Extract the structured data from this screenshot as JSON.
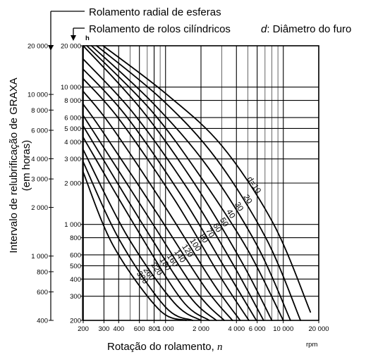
{
  "chart_data": {
    "type": "line",
    "legend": {
      "ball": "Rolamento radial de esferas",
      "roller": "Rolamento de rolos cilíndricos",
      "d_symbol": "d",
      "d_text": ": Diâmetro do furo"
    },
    "ylabel_line1": "Intervalo de relubrificação de GRAXA",
    "ylabel_line2": "(em horas)",
    "xlabel": "Rotação do rolamento, ",
    "xlabel_symbol": "n",
    "x_unit": "rpm",
    "y_unit": "h",
    "xscale": "log",
    "xlim": [
      200,
      20000
    ],
    "x_ticks": [
      {
        "v": 200,
        "t": "200"
      },
      {
        "v": 300,
        "t": "300"
      },
      {
        "v": 400,
        "t": "400"
      },
      {
        "v": 600,
        "t": "600"
      },
      {
        "v": 800,
        "t": "800"
      },
      {
        "v": 1000,
        "t": "1 000"
      },
      {
        "v": 2000,
        "t": "2 000"
      },
      {
        "v": 4000,
        "t": "4 000"
      },
      {
        "v": 6000,
        "t": "6 000"
      },
      {
        "v": 10000,
        "t": "10 000"
      },
      {
        "v": 20000,
        "t": "20 000"
      }
    ],
    "y_roller_lim": [
      200,
      20000
    ],
    "y_roller_ticks": [
      {
        "v": 200,
        "t": "200"
      },
      {
        "v": 300,
        "t": "300"
      },
      {
        "v": 400,
        "t": "400"
      },
      {
        "v": 500,
        "t": "500"
      },
      {
        "v": 600,
        "t": "600"
      },
      {
        "v": 800,
        "t": "800"
      },
      {
        "v": 1000,
        "t": "1 000"
      },
      {
        "v": 2000,
        "t": "2 000"
      },
      {
        "v": 3000,
        "t": "3 000"
      },
      {
        "v": 4000,
        "t": "4 000"
      },
      {
        "v": 5000,
        "t": "5 000"
      },
      {
        "v": 6000,
        "t": "6 000"
      },
      {
        "v": 8000,
        "t": "8 000"
      },
      {
        "v": 10000,
        "t": "10 000"
      },
      {
        "v": 20000,
        "t": "20 000"
      }
    ],
    "y_ball_ticks": [
      {
        "v": 400,
        "t": "400"
      },
      {
        "v": 600,
        "t": "600"
      },
      {
        "v": 800,
        "t": "800"
      },
      {
        "v": 1000,
        "t": "1 000"
      },
      {
        "v": 2000,
        "t": "2 000"
      },
      {
        "v": 3000,
        "t": "3 000"
      },
      {
        "v": 4000,
        "t": "4 000"
      },
      {
        "v": 6000,
        "t": "6 000"
      },
      {
        "v": 8000,
        "t": "8 000"
      },
      {
        "v": 10000,
        "t": "10 000"
      },
      {
        "v": 20000,
        "t": "20 000"
      }
    ],
    "series": [
      {
        "label": "d=10",
        "x": [
          295,
          1000,
          3000,
          8300,
          17000
        ],
        "y": [
          20000,
          9000,
          3750,
          1000,
          230
        ]
      },
      {
        "label": "20",
        "x": [
          260,
          950,
          2700,
          7200,
          14000
        ],
        "y": [
          20000,
          8000,
          3000,
          780,
          200
        ]
      },
      {
        "label": "30",
        "x": [
          235,
          800,
          2300,
          6000,
          11500
        ],
        "y": [
          20000,
          7500,
          2600,
          700,
          200
        ]
      },
      {
        "label": "40",
        "x": [
          215,
          750,
          2000,
          5000,
          10000
        ],
        "y": [
          20000,
          6800,
          2200,
          650,
          200
        ]
      },
      {
        "label": "50",
        "x": [
          200,
          620,
          1750,
          4400,
          8000
        ],
        "y": [
          20000,
          6900,
          2000,
          540,
          200
        ]
      },
      {
        "label": "60",
        "x": [
          200,
          530,
          1550,
          3800,
          6800
        ],
        "y": [
          16000,
          6500,
          1800,
          500,
          200
        ]
      },
      {
        "label": "70",
        "x": [
          200,
          460,
          1350,
          3300,
          5900
        ],
        "y": [
          13500,
          6200,
          1640,
          460,
          200
        ]
      },
      {
        "label": "80",
        "x": [
          200,
          400,
          1200,
          2900,
          5100
        ],
        "y": [
          11500,
          5900,
          1500,
          420,
          200
        ]
      },
      {
        "label": "100",
        "x": [
          200,
          340,
          1000,
          2500,
          4300
        ],
        "y": [
          9300,
          5300,
          1330,
          380,
          200
        ]
      },
      {
        "label": "120",
        "x": [
          200,
          290,
          860,
          2150,
          3700
        ],
        "y": [
          7500,
          4800,
          1180,
          350,
          200
        ]
      },
      {
        "label": "140",
        "x": [
          200,
          740,
          1850,
          3150
        ],
        "y": [
          6200,
          1080,
          320,
          200
        ]
      },
      {
        "label": "160",
        "x": [
          200,
          640,
          1600,
          2700
        ],
        "y": [
          5200,
          1000,
          300,
          200
        ]
      },
      {
        "label": "180",
        "x": [
          200,
          560,
          1380,
          2350
        ],
        "y": [
          4300,
          950,
          280,
          200
        ]
      },
      {
        "label": "220",
        "x": [
          200,
          470,
          1180,
          2000
        ],
        "y": [
          3500,
          830,
          270,
          200
        ]
      },
      {
        "label": "260",
        "x": [
          200,
          410,
          1000,
          1700
        ],
        "y": [
          2850,
          760,
          250,
          200
        ]
      },
      {
        "label": "300",
        "x": [
          200,
          360,
          880,
          1500
        ],
        "y": [
          2400,
          700,
          240,
          200
        ]
      }
    ]
  }
}
